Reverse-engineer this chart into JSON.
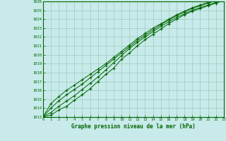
{
  "title": "Graphe pression niveau de la mer (hPa)",
  "background_color": "#c8eaea",
  "grid_color": "#99ccbb",
  "line_color": "#006600",
  "xlim": [
    0,
    23
  ],
  "ylim": [
    1013,
    1026
  ],
  "xticks": [
    0,
    1,
    2,
    3,
    4,
    5,
    6,
    7,
    8,
    9,
    10,
    11,
    12,
    13,
    14,
    15,
    16,
    17,
    18,
    19,
    20,
    21,
    22,
    23
  ],
  "yticks": [
    1013,
    1014,
    1015,
    1016,
    1017,
    1018,
    1019,
    1020,
    1021,
    1022,
    1023,
    1024,
    1025,
    1026
  ],
  "series": [
    [
      1013.0,
      1013.2,
      1013.8,
      1014.2,
      1014.9,
      1015.5,
      1016.2,
      1017.0,
      1017.8,
      1018.5,
      1019.5,
      1020.2,
      1021.0,
      1021.7,
      1022.3,
      1022.9,
      1023.5,
      1024.0,
      1024.5,
      1024.9,
      1025.2,
      1025.5,
      1025.8,
      1026.1
    ],
    [
      1013.0,
      1013.5,
      1014.2,
      1014.8,
      1015.4,
      1016.1,
      1016.8,
      1017.5,
      1018.3,
      1019.1,
      1019.9,
      1020.7,
      1021.4,
      1022.0,
      1022.6,
      1023.2,
      1023.7,
      1024.2,
      1024.6,
      1025.0,
      1025.3,
      1025.6,
      1025.9,
      1026.2
    ],
    [
      1013.0,
      1014.0,
      1014.8,
      1015.5,
      1016.1,
      1016.7,
      1017.4,
      1018.1,
      1018.8,
      1019.5,
      1020.2,
      1020.9,
      1021.6,
      1022.2,
      1022.8,
      1023.4,
      1023.9,
      1024.4,
      1024.8,
      1025.2,
      1025.5,
      1025.8,
      1026.1,
      1026.4
    ],
    [
      1013.0,
      1014.5,
      1015.3,
      1016.0,
      1016.6,
      1017.2,
      1017.8,
      1018.4,
      1019.0,
      1019.7,
      1020.4,
      1021.1,
      1021.8,
      1022.4,
      1023.0,
      1023.5,
      1024.0,
      1024.5,
      1024.9,
      1025.3,
      1025.6,
      1025.9,
      1026.2,
      1026.5
    ]
  ]
}
